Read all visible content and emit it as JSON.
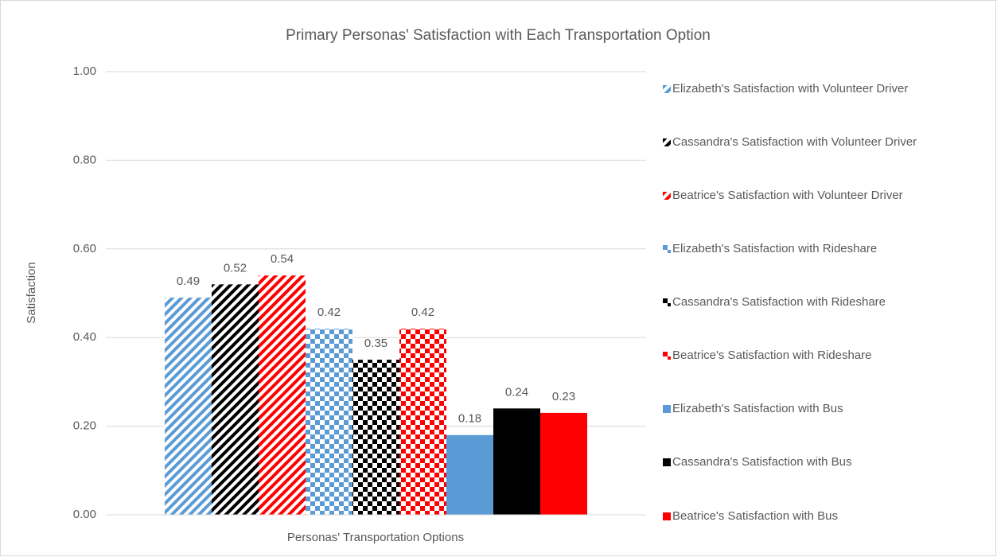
{
  "chart_data": {
    "type": "bar",
    "title": "Primary Personas' Satisfaction with Each Transportation Option",
    "x_label": "Personas' Transportation Options",
    "y_label": "Satisfaction",
    "categories": [
      null
    ],
    "series": [
      {
        "name": "Elizabeth's Satisfaction with Volunteer Driver",
        "color": "#5b9bd5",
        "pattern": "stripe",
        "values": [
          0.49
        ]
      },
      {
        "name": "Cassandra's Satisfaction with Volunteer Driver",
        "color": "#000000",
        "pattern": "stripe",
        "values": [
          0.52
        ]
      },
      {
        "name": "Beatrice's Satisfaction with Volunteer Driver",
        "color": "#ff0000",
        "pattern": "stripe",
        "values": [
          0.54
        ]
      },
      {
        "name": "Elizabeth's Satisfaction with Rideshare",
        "color": "#5b9bd5",
        "pattern": "check",
        "values": [
          0.42
        ]
      },
      {
        "name": "Cassandra's Satisfaction with Rideshare",
        "color": "#000000",
        "pattern": "check",
        "values": [
          0.35
        ]
      },
      {
        "name": "Beatrice's Satisfaction with Rideshare",
        "color": "#ff0000",
        "pattern": "check",
        "values": [
          0.42
        ]
      },
      {
        "name": "Elizabeth's Satisfaction with Bus",
        "color": "#5b9bd5",
        "pattern": "solid",
        "values": [
          0.18
        ]
      },
      {
        "name": "Cassandra's Satisfaction with Bus",
        "color": "#000000",
        "pattern": "solid",
        "values": [
          0.24
        ]
      },
      {
        "name": "Beatrice's Satisfaction with Bus",
        "color": "#ff0000",
        "pattern": "solid",
        "values": [
          0.23
        ]
      }
    ],
    "ylim": [
      0,
      1
    ],
    "yticks": [
      {
        "value": 0,
        "label": "0.00"
      },
      {
        "value": 0.2,
        "label": "0.20"
      },
      {
        "value": 0.4,
        "label": "0.40"
      },
      {
        "value": 0.6,
        "label": "0.60"
      },
      {
        "value": 0.8,
        "label": "0.80"
      },
      {
        "value": 1,
        "label": "1.00"
      }
    ],
    "grid": true,
    "legend": "right"
  }
}
